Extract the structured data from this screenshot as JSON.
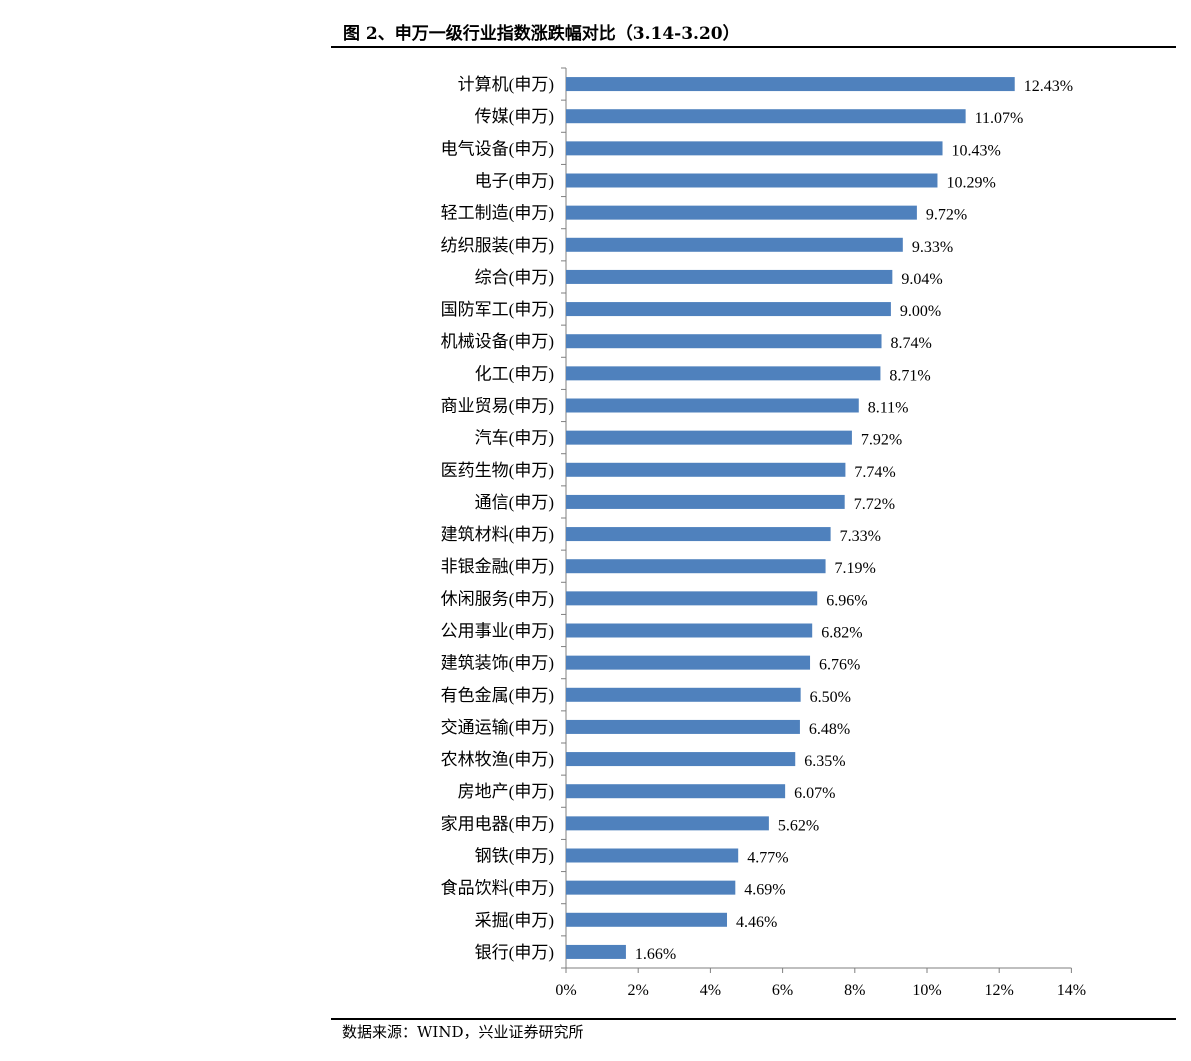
{
  "figure": {
    "title": "图 2、申万一级行业指数涨跌幅对比（3.14-3.20）",
    "source": "数据来源：WIND，兴业证券研究所"
  },
  "colors": {
    "bar": "#4F81BD",
    "axis": "#7F7F7F",
    "text": "#000000"
  },
  "chart_data": {
    "type": "bar",
    "orientation": "horizontal",
    "categories": [
      "计算机(申万)",
      "传媒(申万)",
      "电气设备(申万)",
      "电子(申万)",
      "轻工制造(申万)",
      "纺织服装(申万)",
      "综合(申万)",
      "国防军工(申万)",
      "机械设备(申万)",
      "化工(申万)",
      "商业贸易(申万)",
      "汽车(申万)",
      "医药生物(申万)",
      "通信(申万)",
      "建筑材料(申万)",
      "非银金融(申万)",
      "休闲服务(申万)",
      "公用事业(申万)",
      "建筑装饰(申万)",
      "有色金属(申万)",
      "交通运输(申万)",
      "农林牧渔(申万)",
      "房地产(申万)",
      "家用电器(申万)",
      "钢铁(申万)",
      "食品饮料(申万)",
      "采掘(申万)",
      "银行(申万)"
    ],
    "values": [
      12.43,
      11.07,
      10.43,
      10.29,
      9.72,
      9.33,
      9.04,
      9.0,
      8.74,
      8.71,
      8.11,
      7.92,
      7.74,
      7.72,
      7.33,
      7.19,
      6.96,
      6.82,
      6.76,
      6.5,
      6.48,
      6.35,
      6.07,
      5.62,
      4.77,
      4.69,
      4.46,
      1.66
    ],
    "value_labels": [
      "12.43%",
      "11.07%",
      "10.43%",
      "10.29%",
      "9.72%",
      "9.33%",
      "9.04%",
      "9.00%",
      "8.74%",
      "8.71%",
      "8.11%",
      "7.92%",
      "7.74%",
      "7.72%",
      "7.33%",
      "7.19%",
      "6.96%",
      "6.82%",
      "6.76%",
      "6.50%",
      "6.48%",
      "6.35%",
      "6.07%",
      "5.62%",
      "4.77%",
      "4.69%",
      "4.46%",
      "1.66%"
    ],
    "xlim": [
      0,
      14
    ],
    "xticks": [
      0,
      2,
      4,
      6,
      8,
      10,
      12,
      14
    ],
    "xtick_labels": [
      "0%",
      "2%",
      "4%",
      "6%",
      "8%",
      "10%",
      "12%",
      "14%"
    ],
    "grid": false,
    "legend": "none"
  }
}
